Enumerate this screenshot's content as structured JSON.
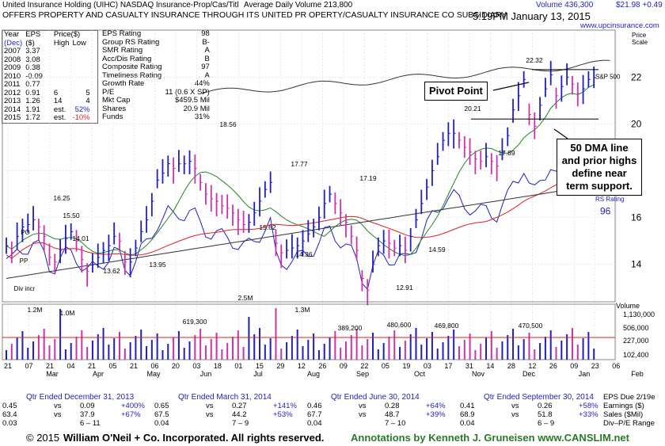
{
  "header": {
    "company": "United Insurance Holding",
    "ticker_line": "(UIHC) NASDAQ Insurance-Prop/Cas/Titl",
    "avg_volume": "Average Daily Volume 213,800",
    "description": "OFFERS PROPERTY AND CASUALTY INSURANCE THROUGH ITS UNITED PR OPERTY/CASUALTY INSURANCE CO SUBSIDIARY",
    "volume": "Volume 436,300",
    "price_change": "$21.98 +0.49",
    "datetime": "5:19PM January 13, 2015",
    "url": "www.upcinsurance.com",
    "scale_label": "Price Scale"
  },
  "eps_table": {
    "headers": [
      "Year",
      "EPS",
      "Price($)"
    ],
    "subheaders": [
      "(Dec)",
      "($)",
      "High",
      "Low"
    ],
    "rows": [
      {
        "year": "2007",
        "eps": "3.37",
        "high": "",
        "low": "",
        "est": "",
        "pct": ""
      },
      {
        "year": "2008",
        "eps": "3.08",
        "high": "",
        "low": "",
        "est": "",
        "pct": ""
      },
      {
        "year": "2009",
        "eps": "0.38",
        "high": "",
        "low": "",
        "est": "",
        "pct": ""
      },
      {
        "year": "2010",
        "eps": "-0.09",
        "high": "",
        "low": "",
        "est": "",
        "pct": ""
      },
      {
        "year": "2011",
        "eps": "0.77",
        "high": "",
        "low": "",
        "est": "",
        "pct": ""
      },
      {
        "year": "2012",
        "eps": "0.91",
        "high": "6",
        "low": "5",
        "est": "",
        "pct": ""
      },
      {
        "year": "2013",
        "eps": "1.26",
        "high": "14",
        "low": "4",
        "est": "",
        "pct": ""
      },
      {
        "year": "2014",
        "eps": "1.91",
        "high": "",
        "low": "",
        "est": "est.",
        "pct": "52%"
      },
      {
        "year": "2015",
        "eps": "1.72",
        "high": "",
        "low": "",
        "est": "est.",
        "pct": "-10%"
      }
    ]
  },
  "ratings": [
    {
      "label": "EPS Rating",
      "value": "98"
    },
    {
      "label": "Group RS Rating",
      "value": "B-"
    },
    {
      "label": "SMR Rating",
      "value": "A"
    },
    {
      "label": "Acc/Dis Rating",
      "value": "B"
    },
    {
      "label": "Composite Rating",
      "value": "97"
    },
    {
      "label": "Timeliness Rating",
      "value": "A"
    },
    {
      "label": "Growth Rate",
      "value": "44%"
    },
    {
      "label": "P/E",
      "value": "11 (0.6 X SP)"
    },
    {
      "label": "Mkt Cap",
      "value": "$459.5 Mil"
    },
    {
      "label": "Shares",
      "value": "20.9 Mil"
    },
    {
      "label": "Funds",
      "value": "31%"
    }
  ],
  "annotations": {
    "pivot": "Pivot Point",
    "support": "50 DMA line and prior highs define near term support."
  },
  "chart_data": {
    "type": "line",
    "price_axis": {
      "ticks": [
        14,
        16,
        18,
        20,
        22
      ],
      "range": [
        12.4,
        23.5
      ]
    },
    "volume_axis": {
      "ticks": [
        "1,130,000",
        "506,000",
        "227,000",
        "102,400"
      ],
      "label": "Volume"
    },
    "x_labels": [
      "21",
      "07",
      "21",
      "04",
      "21",
      "05",
      "21",
      "06",
      "20",
      "03",
      "18",
      "01",
      "15",
      "29",
      "12",
      "26",
      "09",
      "22",
      "05",
      "19",
      "03",
      "17",
      "31",
      "14",
      "28",
      "12",
      "26",
      "09",
      "23",
      "06"
    ],
    "month_labels": [
      "Mar",
      "Apr",
      "May",
      "Jun",
      "Jul",
      "Aug",
      "Sep",
      "Oct",
      "Nov",
      "Dec",
      "Jan",
      "Feb"
    ],
    "price_labels": [
      "16.25",
      "15.50",
      "14.01",
      "13.62",
      "13.95",
      "18.56",
      "15.62",
      "17.77",
      "14.36",
      "17.19",
      "12.91",
      "14.59",
      "20.21",
      "17.89",
      "22.32"
    ],
    "volume_labels": [
      "1.2M",
      "1.0M",
      "619,300",
      "2.5M",
      "1.3M",
      "389,200",
      "480,600",
      "469,800",
      "470,500"
    ],
    "series": [
      {
        "name": "S&P 500"
      },
      {
        "name": "RS Rating",
        "value": "96"
      }
    ],
    "markers": [
      "PO",
      "PP",
      "Div incr"
    ],
    "ohlc_close_points": [
      14.8,
      14.5,
      15.2,
      15.6,
      15.7,
      15.9,
      15.6,
      15.2,
      14.3,
      14.1,
      14.6,
      15.1,
      15.4,
      15.0,
      14.2,
      13.7,
      14.0,
      14.3,
      14.6,
      14.8,
      15.2,
      15.0,
      14.1,
      14.1,
      14.7,
      15.4,
      15.9,
      16.7,
      17.6,
      17.9,
      18.3,
      18.1,
      18.3,
      18.3,
      18.4,
      18.1,
      17.5,
      17.0,
      16.8,
      16.7,
      16.5,
      16.4,
      16.2,
      15.9,
      15.7,
      15.8,
      16.2,
      16.7,
      17.2,
      17.5,
      14.9,
      14.5,
      14.6,
      14.7,
      14.8,
      15.0,
      15.3,
      15.6,
      16.0,
      16.6,
      17.0,
      16.6,
      16.2,
      15.8,
      15.2,
      14.6,
      13.4,
      12.9,
      14.0,
      14.8,
      15.0,
      14.9,
      14.7,
      14.8,
      14.6,
      15.2,
      15.9,
      16.6,
      17.3,
      18.0,
      18.6,
      19.3,
      19.6,
      19.6,
      19.3,
      19.0,
      18.8,
      18.5,
      18.4,
      18.6,
      18.4,
      18.2,
      18.8,
      19.5,
      20.6,
      21.2,
      21.9,
      20.4,
      19.9,
      20.8,
      21.5,
      22.1,
      21.2,
      21.6,
      22.0,
      21.7,
      21.3,
      21.5,
      21.9,
      21.98
    ]
  },
  "quarters": [
    {
      "title": "Qtr Ended December 31, 2013",
      "rows": [
        [
          "0.45",
          "vs",
          "0.09",
          "+400%"
        ],
        [
          "63.4",
          "vs",
          "37.9",
          "+67%"
        ],
        [
          "0.03",
          "",
          "6 – 11",
          ""
        ]
      ]
    },
    {
      "title": "Qtr Ended March 31, 2014",
      "rows": [
        [
          "0.65",
          "vs",
          "0.27",
          "+141%"
        ],
        [
          "67.5",
          "vs",
          "44.2",
          "+53%"
        ],
        [
          "0.04",
          "",
          "7 – 9",
          ""
        ]
      ]
    },
    {
      "title": "Qtr Ended June 30, 2014",
      "rows": [
        [
          "0.46",
          "vs",
          "0.28",
          "+64%"
        ],
        [
          "67.7",
          "vs",
          "48.7",
          "+39%"
        ],
        [
          "0.04",
          "",
          "7 – 10",
          ""
        ]
      ]
    },
    {
      "title": "Qtr Ended September 30, 2014",
      "rows": [
        [
          "0.41",
          "vs",
          "0.26",
          "+58%"
        ],
        [
          "68.9",
          "vs",
          "51.8",
          "+33%"
        ],
        [
          "0.04",
          "",
          "6 – 9",
          ""
        ]
      ]
    }
  ],
  "eps_due": {
    "title": "EPS Due 2/19e",
    "labels": [
      "Earnings ($)",
      "Sales ($Mil)",
      "Div–P/E Range"
    ]
  },
  "footer": {
    "copyright": "© 2015",
    "company": "William O'Neil + Co. Incorporated. All rights reserved.",
    "annotations": "Annotations by Kenneth J. Gruneisen www.CANSLIM.net"
  },
  "colors": {
    "blue": "#1f1fbf",
    "red": "#dd2222",
    "green": "#228822",
    "magenta": "#cc33aa",
    "footer_green": "#2a7a2a"
  }
}
